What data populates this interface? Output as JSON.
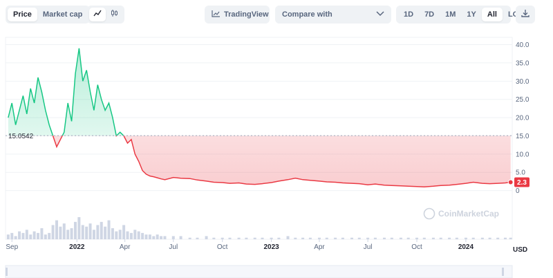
{
  "tabs": {
    "price": "Price",
    "market_cap": "Market cap"
  },
  "icons": {
    "line": "line-chart-icon",
    "candle": "candlestick-icon",
    "tradingview": "tradingview-icon",
    "chevron": "chevron-down-icon",
    "download": "download-icon"
  },
  "tradingview_label": "TradingView",
  "compare": {
    "label": "Compare with"
  },
  "ranges": [
    "1D",
    "7D",
    "1M",
    "1Y",
    "All"
  ],
  "log_label": "LOG",
  "currency": "USD",
  "watermark": "CoinMarketCap",
  "colors": {
    "up": "#16c784",
    "down": "#ea3943",
    "axis_text": "#58667e",
    "grid": "#eff2f5"
  },
  "chart_data": {
    "type": "area",
    "x_start": "2021-09-01",
    "baseline_value": 15.0542,
    "baseline_label": "15.0542",
    "current_price": 2.3,
    "current_label": "2.3",
    "ylim": [
      -5,
      42
    ],
    "yticks": [
      0,
      5,
      10,
      15,
      20,
      25,
      30,
      35,
      40
    ],
    "ytick_labels": [
      "0",
      "5.0",
      "10.0",
      "15.0",
      "20.0",
      "25.0",
      "30.0",
      "35.0",
      "40.0"
    ],
    "xticks": [
      {
        "label": "Sep",
        "date": "2021-09-01",
        "major": false
      },
      {
        "label": "2022",
        "date": "2022-01-01",
        "major": true
      },
      {
        "label": "Apr",
        "date": "2022-04-01",
        "major": false
      },
      {
        "label": "Jul",
        "date": "2022-07-01",
        "major": false
      },
      {
        "label": "Oct",
        "date": "2022-10-01",
        "major": false
      },
      {
        "label": "2023",
        "date": "2023-01-01",
        "major": true
      },
      {
        "label": "Apr",
        "date": "2023-04-01",
        "major": false
      },
      {
        "label": "Jul",
        "date": "2023-07-01",
        "major": false
      },
      {
        "label": "Oct",
        "date": "2023-10-01",
        "major": false
      },
      {
        "label": "2024",
        "date": "2024-01-01",
        "major": true
      }
    ],
    "xrange": [
      "2021-08-20",
      "2024-03-28"
    ],
    "series": [
      {
        "dates": [
          "2021-08-25",
          "2021-09-01",
          "2021-09-08",
          "2021-09-15",
          "2021-09-22",
          "2021-09-29",
          "2021-10-06",
          "2021-10-13",
          "2021-10-20",
          "2021-10-27",
          "2021-11-03",
          "2021-11-10",
          "2021-11-17",
          "2021-11-24",
          "2021-12-01",
          "2021-12-08",
          "2021-12-15",
          "2021-12-22",
          "2021-12-29",
          "2022-01-05",
          "2022-01-12",
          "2022-01-19",
          "2022-01-26",
          "2022-02-02",
          "2022-02-09",
          "2022-02-16",
          "2022-02-23",
          "2022-03-02",
          "2022-03-09",
          "2022-03-16",
          "2022-03-23",
          "2022-03-30",
          "2022-04-06",
          "2022-04-13",
          "2022-04-20",
          "2022-04-27",
          "2022-05-04",
          "2022-05-11",
          "2022-05-18",
          "2022-05-25",
          "2022-06-01",
          "2022-06-08",
          "2022-06-15",
          "2022-07-01",
          "2022-07-15",
          "2022-08-01",
          "2022-08-15",
          "2022-09-01",
          "2022-09-15",
          "2022-10-01",
          "2022-10-15",
          "2022-11-01",
          "2022-11-15",
          "2022-12-01",
          "2022-12-15",
          "2023-01-01",
          "2023-01-15",
          "2023-02-01",
          "2023-02-15",
          "2023-03-01",
          "2023-03-15",
          "2023-04-01",
          "2023-04-15",
          "2023-05-01",
          "2023-05-15",
          "2023-06-01",
          "2023-06-15",
          "2023-07-01",
          "2023-07-15",
          "2023-08-01",
          "2023-08-15",
          "2023-09-01",
          "2023-09-15",
          "2023-10-01",
          "2023-10-15",
          "2023-11-01",
          "2023-11-15",
          "2023-12-01",
          "2023-12-15",
          "2024-01-01",
          "2024-01-15",
          "2024-02-01",
          "2024-02-15",
          "2024-03-01",
          "2024-03-15",
          "2024-03-25"
        ],
        "values": [
          20,
          24,
          18,
          22,
          26,
          21,
          28,
          24,
          31,
          27,
          22,
          18,
          15,
          12,
          14,
          16,
          24,
          19,
          32,
          39,
          30,
          33,
          27,
          22,
          29,
          25,
          22,
          24,
          20,
          15,
          16,
          15,
          13,
          14,
          10,
          8,
          5.5,
          4.5,
          4,
          3.8,
          3.5,
          3.2,
          3.0,
          3.6,
          3.4,
          3.3,
          2.9,
          2.6,
          2.3,
          2.2,
          2.0,
          2.1,
          1.8,
          1.7,
          1.9,
          2.2,
          2.6,
          3.0,
          3.4,
          3.0,
          2.8,
          2.6,
          2.4,
          2.3,
          2.1,
          2.0,
          1.9,
          1.6,
          1.8,
          1.5,
          1.4,
          1.3,
          1.2,
          1.1,
          1.0,
          1.2,
          1.4,
          1.5,
          1.7,
          2.0,
          2.3,
          2.0,
          1.9,
          2.0,
          2.1,
          2.3
        ]
      }
    ],
    "volume": [
      3,
      4,
      2,
      5,
      4,
      6,
      3,
      5,
      4,
      7,
      3,
      4,
      9,
      12,
      8,
      10,
      6,
      7,
      11,
      14,
      9,
      8,
      10,
      6,
      9,
      11,
      8,
      12,
      7,
      5,
      6,
      9,
      5,
      4,
      6,
      5,
      4,
      3,
      3,
      2,
      3,
      2,
      2,
      2,
      2,
      1,
      1,
      2,
      1,
      1,
      1,
      1,
      1,
      1,
      1,
      1,
      1,
      2,
      1,
      1,
      1,
      1,
      1,
      1,
      1,
      1,
      1,
      1,
      1,
      1,
      1,
      1,
      1,
      1,
      1,
      1,
      1,
      1,
      1,
      1,
      1,
      1,
      1,
      1,
      1,
      1
    ]
  }
}
